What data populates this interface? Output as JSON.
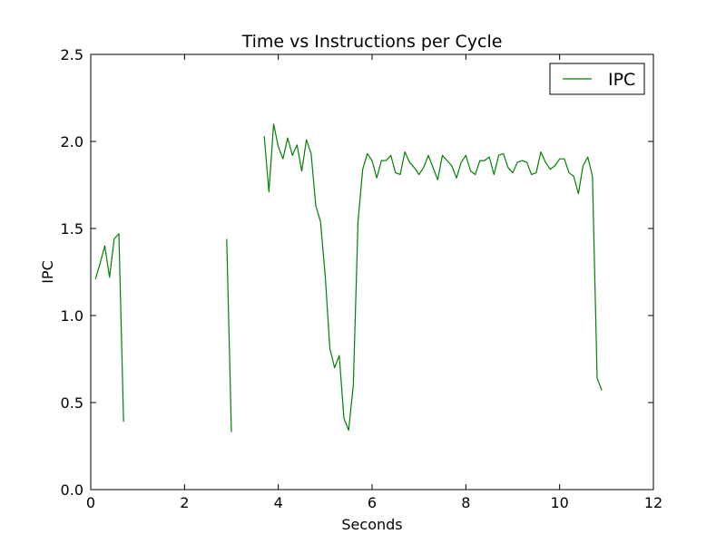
{
  "chart_data": {
    "type": "line",
    "title": "Time vs Instructions per Cycle",
    "xlabel": "Seconds",
    "ylabel": "IPC",
    "xlim": [
      0,
      12
    ],
    "ylim": [
      0.0,
      2.5
    ],
    "x_ticks": [
      0,
      2,
      4,
      6,
      8,
      10,
      12
    ],
    "x_tick_labels": [
      "0",
      "2",
      "4",
      "6",
      "8",
      "10",
      "12"
    ],
    "y_ticks": [
      0.0,
      0.5,
      1.0,
      1.5,
      2.0,
      2.5
    ],
    "y_tick_labels": [
      "0.0",
      "0.5",
      "1.0",
      "1.5",
      "2.0",
      "2.5"
    ],
    "grid": false,
    "legend_position": "top-right",
    "series": [
      {
        "name": "IPC",
        "color": "#008000",
        "segments": [
          [
            [
              0.1,
              1.21
            ],
            [
              0.2,
              1.3
            ],
            [
              0.3,
              1.4
            ],
            [
              0.4,
              1.22
            ],
            [
              0.5,
              1.44
            ],
            [
              0.6,
              1.47
            ],
            [
              0.7,
              0.39
            ]
          ],
          [
            [
              2.9,
              1.44
            ],
            [
              3.0,
              0.33
            ]
          ],
          [
            [
              3.7,
              2.03
            ],
            [
              3.8,
              1.71
            ],
            [
              3.9,
              2.1
            ],
            [
              4.0,
              1.97
            ],
            [
              4.1,
              1.9
            ],
            [
              4.2,
              2.02
            ],
            [
              4.3,
              1.92
            ],
            [
              4.4,
              1.98
            ],
            [
              4.5,
              1.83
            ],
            [
              4.6,
              2.01
            ],
            [
              4.7,
              1.93
            ],
            [
              4.8,
              1.63
            ],
            [
              4.9,
              1.54
            ],
            [
              5.0,
              1.23
            ],
            [
              5.1,
              0.81
            ],
            [
              5.2,
              0.7
            ],
            [
              5.3,
              0.77
            ],
            [
              5.4,
              0.41
            ],
            [
              5.5,
              0.34
            ],
            [
              5.6,
              0.6
            ],
            [
              5.7,
              1.54
            ],
            [
              5.8,
              1.84
            ],
            [
              5.9,
              1.93
            ],
            [
              6.0,
              1.89
            ],
            [
              6.1,
              1.79
            ],
            [
              6.2,
              1.89
            ],
            [
              6.3,
              1.89
            ],
            [
              6.4,
              1.92
            ],
            [
              6.5,
              1.82
            ],
            [
              6.6,
              1.81
            ],
            [
              6.7,
              1.94
            ],
            [
              6.8,
              1.88
            ],
            [
              6.9,
              1.85
            ],
            [
              7.0,
              1.81
            ],
            [
              7.1,
              1.85
            ],
            [
              7.2,
              1.92
            ],
            [
              7.3,
              1.85
            ],
            [
              7.4,
              1.78
            ],
            [
              7.5,
              1.92
            ],
            [
              7.6,
              1.89
            ],
            [
              7.7,
              1.86
            ],
            [
              7.8,
              1.79
            ],
            [
              7.9,
              1.88
            ],
            [
              8.0,
              1.92
            ],
            [
              8.1,
              1.83
            ],
            [
              8.2,
              1.81
            ],
            [
              8.3,
              1.89
            ],
            [
              8.4,
              1.89
            ],
            [
              8.5,
              1.91
            ],
            [
              8.6,
              1.81
            ],
            [
              8.7,
              1.92
            ],
            [
              8.8,
              1.93
            ],
            [
              8.9,
              1.85
            ],
            [
              9.0,
              1.82
            ],
            [
              9.1,
              1.88
            ],
            [
              9.2,
              1.89
            ],
            [
              9.3,
              1.88
            ],
            [
              9.4,
              1.81
            ],
            [
              9.5,
              1.82
            ],
            [
              9.6,
              1.94
            ],
            [
              9.7,
              1.88
            ],
            [
              9.8,
              1.84
            ],
            [
              9.9,
              1.86
            ],
            [
              10.0,
              1.9
            ],
            [
              10.1,
              1.9
            ],
            [
              10.2,
              1.82
            ],
            [
              10.3,
              1.8
            ],
            [
              10.4,
              1.7
            ],
            [
              10.5,
              1.86
            ],
            [
              10.6,
              1.91
            ],
            [
              10.7,
              1.8
            ],
            [
              10.8,
              0.64
            ],
            [
              10.9,
              0.57
            ]
          ]
        ]
      }
    ]
  }
}
